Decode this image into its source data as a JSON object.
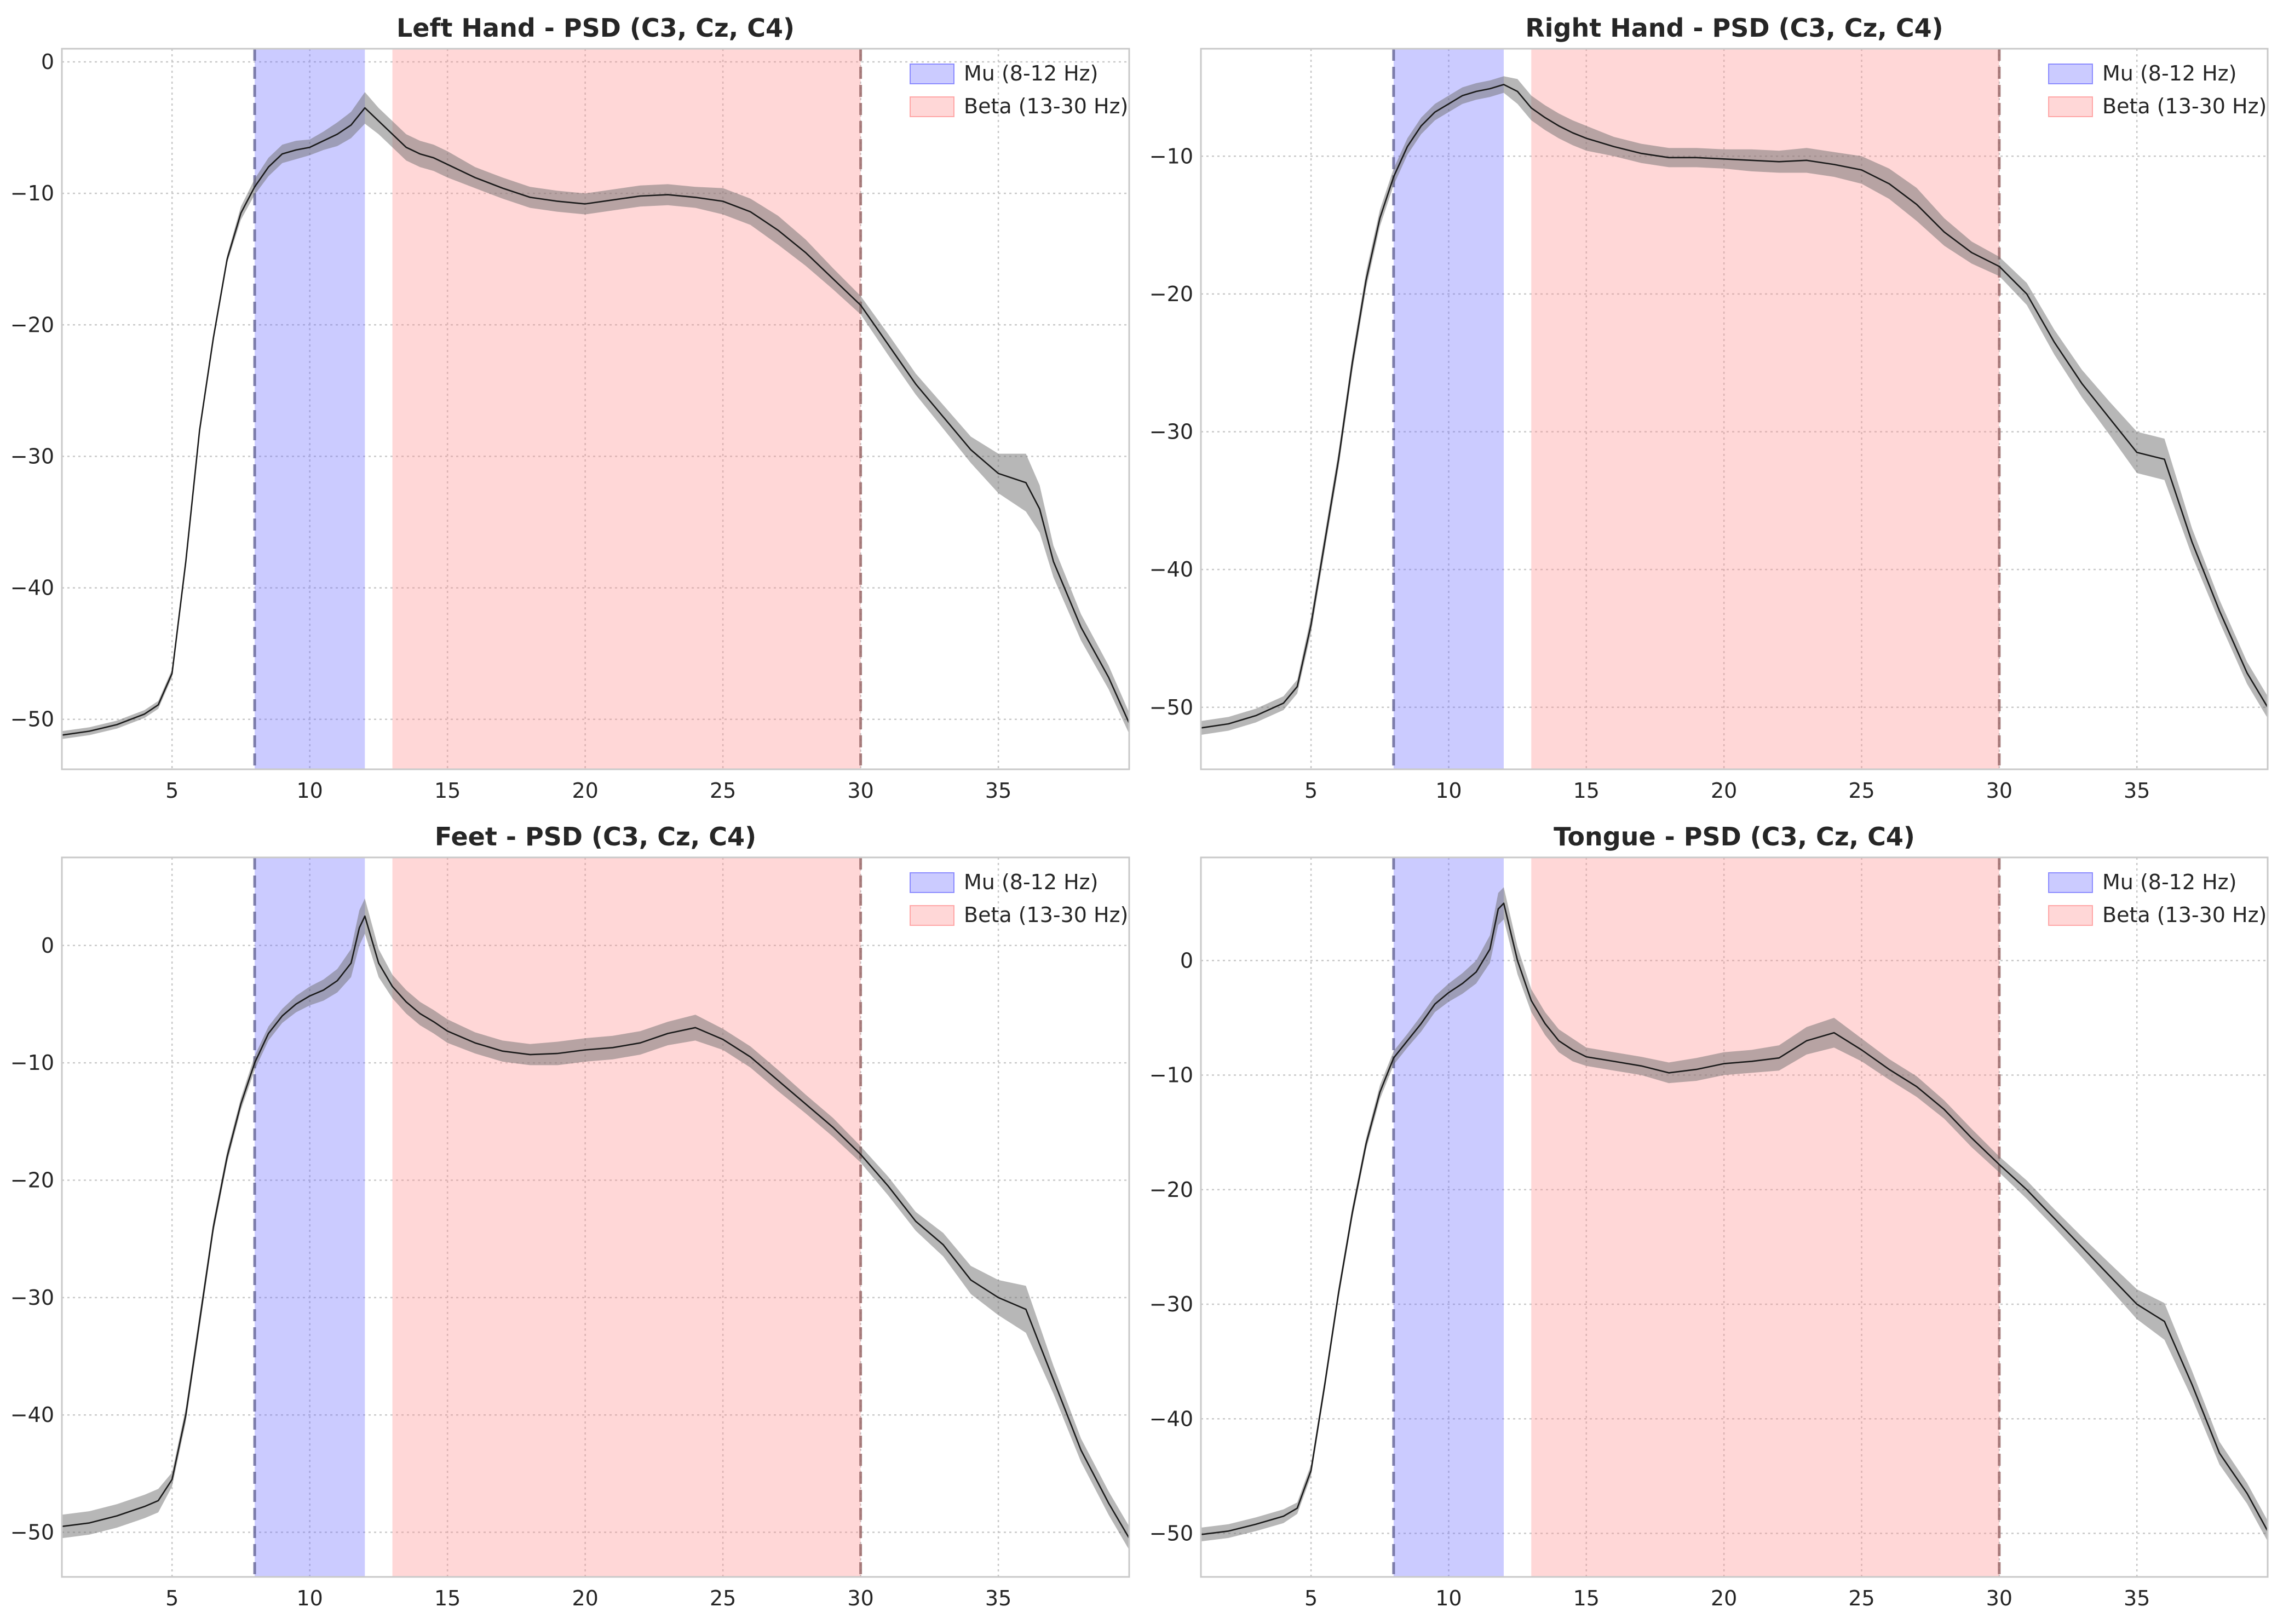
{
  "chart_data": [
    {
      "type": "line",
      "title": "Left Hand - PSD (C3, Cz, C4)",
      "xlim": [
        1,
        39.75
      ],
      "ylim": [
        -53.8,
        1.0
      ],
      "xticks": [
        5,
        10,
        15,
        20,
        25,
        30,
        35
      ],
      "yticks": [
        0,
        -10,
        -20,
        -30,
        -40,
        -50
      ],
      "grid": true,
      "legend_position": "top-right",
      "bands": [
        {
          "label": "Mu (8-12 Hz)",
          "range": [
            8,
            12
          ],
          "color": "#6666ff"
        },
        {
          "label": "Beta (13-30 Hz)",
          "range": [
            13,
            30
          ],
          "color": "#ff8a8a"
        }
      ],
      "vlines": [
        8,
        30
      ],
      "series": [
        {
          "x": [
            1,
            2,
            3,
            4,
            4.5,
            5,
            5.5,
            6,
            6.5,
            7,
            7.5,
            8,
            8.5,
            9,
            9.5,
            10,
            10.5,
            11,
            11.5,
            12,
            12.5,
            13,
            13.5,
            14,
            14.5,
            15,
            16,
            17,
            18,
            19,
            20,
            21,
            22,
            23,
            24,
            25,
            26,
            27,
            28,
            29,
            30,
            31,
            32,
            33,
            34,
            35,
            36,
            36.5,
            37,
            38,
            39,
            39.75
          ],
          "y": [
            -51.2,
            -50.9,
            -50.4,
            -49.6,
            -48.9,
            -46.5,
            -38,
            -28,
            -21,
            -15,
            -11.5,
            -9.5,
            -8,
            -7,
            -6.7,
            -6.5,
            -6,
            -5.5,
            -4.8,
            -3.5,
            -4.5,
            -5.5,
            -6.5,
            -7,
            -7.3,
            -7.8,
            -8.8,
            -9.6,
            -10.3,
            -10.6,
            -10.8,
            -10.5,
            -10.2,
            -10.1,
            -10.3,
            -10.6,
            -11.4,
            -12.8,
            -14.5,
            -16.5,
            -18.5,
            -21.5,
            -24.5,
            -27,
            -29.5,
            -31.3,
            -32,
            -34,
            -38,
            -43,
            -46.8,
            -50.3
          ],
          "band": [
            0.3,
            0.3,
            0.3,
            0.3,
            0.3,
            0.3,
            0.3,
            0.3,
            0.3,
            0.3,
            0.5,
            0.6,
            0.7,
            0.7,
            0.7,
            0.6,
            0.7,
            0.9,
            1.0,
            1.2,
            1.0,
            1.0,
            1.0,
            1.0,
            1.0,
            1.0,
            0.8,
            0.8,
            0.8,
            0.8,
            0.8,
            0.8,
            0.8,
            0.8,
            0.8,
            1.0,
            1.0,
            1.1,
            1.0,
            0.8,
            0.7,
            0.8,
            0.8,
            0.9,
            1.0,
            1.5,
            2.2,
            1.8,
            1.2,
            1.0,
            0.9,
            0.8
          ]
        }
      ]
    },
    {
      "type": "line",
      "title": "Right Hand - PSD (C3, Cz, C4)",
      "xlim": [
        1,
        39.75
      ],
      "ylim": [
        -54.5,
        -2.2
      ],
      "xticks": [
        5,
        10,
        15,
        20,
        25,
        30,
        35
      ],
      "yticks": [
        -10,
        -20,
        -30,
        -40,
        -50
      ],
      "grid": true,
      "legend_position": "top-right",
      "bands": [
        {
          "label": "Mu (8-12 Hz)",
          "range": [
            8,
            12
          ],
          "color": "#6666ff"
        },
        {
          "label": "Beta (13-30 Hz)",
          "range": [
            13,
            30
          ],
          "color": "#ff8a8a"
        }
      ],
      "vlines": [
        8,
        30
      ],
      "series": [
        {
          "x": [
            1,
            2,
            3,
            4,
            4.5,
            5,
            5.5,
            6,
            6.5,
            7,
            7.5,
            8,
            8.5,
            9,
            9.5,
            10,
            10.5,
            11,
            11.5,
            12,
            12.5,
            13,
            13.5,
            14,
            14.5,
            15,
            16,
            17,
            18,
            19,
            20,
            21,
            22,
            23,
            24,
            25,
            26,
            27,
            28,
            29,
            30,
            31,
            32,
            33,
            34,
            35,
            36,
            37,
            38,
            39,
            39.75
          ],
          "y": [
            -51.5,
            -51.2,
            -50.6,
            -49.7,
            -48.5,
            -44,
            -38,
            -32,
            -25,
            -19,
            -14.5,
            -11.5,
            -9.3,
            -7.8,
            -6.8,
            -6.2,
            -5.6,
            -5.3,
            -5.1,
            -4.8,
            -5.3,
            -6.5,
            -7.2,
            -7.8,
            -8.3,
            -8.7,
            -9.3,
            -9.8,
            -10.1,
            -10.1,
            -10.2,
            -10.3,
            -10.4,
            -10.3,
            -10.6,
            -11,
            -12,
            -13.5,
            -15.5,
            -17,
            -18,
            -20,
            -23.5,
            -26.5,
            -29,
            -31.5,
            -32,
            -38,
            -43,
            -47.5,
            -50
          ],
          "band": [
            0.5,
            0.5,
            0.5,
            0.5,
            0.5,
            0.6,
            0.6,
            0.6,
            0.6,
            0.6,
            0.6,
            0.6,
            0.6,
            0.6,
            0.6,
            0.6,
            0.6,
            0.6,
            0.6,
            0.6,
            0.9,
            0.9,
            0.9,
            0.9,
            0.9,
            0.9,
            0.7,
            0.7,
            0.7,
            0.7,
            0.7,
            0.8,
            0.8,
            0.9,
            0.9,
            1.0,
            1.1,
            1.2,
            1.0,
            0.8,
            0.7,
            0.8,
            0.9,
            1.0,
            1.2,
            1.5,
            1.5,
            1.0,
            0.8,
            0.8,
            0.8
          ]
        }
      ]
    },
    {
      "type": "line",
      "title": "Feet - PSD (C3, Cz, C4)",
      "xlim": [
        1,
        39.75
      ],
      "ylim": [
        -53.8,
        7.5
      ],
      "xticks": [
        5,
        10,
        15,
        20,
        25,
        30,
        35
      ],
      "yticks": [
        0,
        -10,
        -20,
        -30,
        -40,
        -50
      ],
      "grid": true,
      "legend_position": "top-right",
      "bands": [
        {
          "label": "Mu (8-12 Hz)",
          "range": [
            8,
            12
          ],
          "color": "#6666ff"
        },
        {
          "label": "Beta (13-30 Hz)",
          "range": [
            13,
            30
          ],
          "color": "#ff8a8a"
        }
      ],
      "vlines": [
        8,
        30
      ],
      "series": [
        {
          "x": [
            1,
            2,
            3,
            4,
            4.5,
            5,
            5.5,
            6,
            6.5,
            7,
            7.5,
            8,
            8.5,
            9,
            9.5,
            10,
            10.5,
            11,
            11.5,
            11.8,
            12,
            12.5,
            13,
            13.5,
            14,
            14.5,
            15,
            16,
            17,
            18,
            19,
            20,
            21,
            22,
            23,
            24,
            25,
            26,
            27,
            28,
            29,
            30,
            31,
            32,
            33,
            34,
            35,
            36,
            37,
            38,
            39,
            39.75
          ],
          "y": [
            -49.5,
            -49.2,
            -48.6,
            -47.8,
            -47.3,
            -45.5,
            -40,
            -32,
            -24,
            -18,
            -13.5,
            -10,
            -7.5,
            -6,
            -5,
            -4.3,
            -3.8,
            -3,
            -1.5,
            1.5,
            2.5,
            -1.5,
            -3.5,
            -4.8,
            -5.8,
            -6.5,
            -7.3,
            -8.3,
            -9,
            -9.3,
            -9.2,
            -8.9,
            -8.7,
            -8.3,
            -7.5,
            -7,
            -8,
            -9.5,
            -11.5,
            -13.5,
            -15.5,
            -17.8,
            -20.5,
            -23.5,
            -25.5,
            -28.5,
            -30,
            -31,
            -37,
            -43,
            -47.5,
            -50.5
          ],
          "band": [
            1.0,
            1.0,
            1.0,
            1.0,
            1.0,
            0.6,
            0.6,
            0.6,
            0.5,
            0.5,
            0.5,
            0.6,
            0.6,
            0.6,
            0.7,
            0.8,
            0.9,
            1.0,
            1.2,
            1.5,
            1.5,
            1.2,
            1.0,
            1.0,
            1.0,
            1.0,
            1.0,
            0.9,
            0.9,
            0.9,
            1.0,
            1.0,
            1.0,
            1.0,
            1.0,
            1.1,
            0.9,
            0.9,
            0.9,
            0.8,
            0.8,
            0.7,
            0.8,
            0.8,
            1.0,
            1.2,
            1.5,
            2.0,
            1.2,
            1.0,
            1.0,
            1.0
          ]
        }
      ]
    },
    {
      "type": "line",
      "title": "Tongue - PSD (C3, Cz, C4)",
      "xlim": [
        1,
        39.75
      ],
      "ylim": [
        -53.8,
        9.0
      ],
      "xticks": [
        5,
        10,
        15,
        20,
        25,
        30,
        35
      ],
      "yticks": [
        0,
        -10,
        -20,
        -30,
        -40,
        -50
      ],
      "grid": true,
      "legend_position": "top-right",
      "bands": [
        {
          "label": "Mu (8-12 Hz)",
          "range": [
            8,
            12
          ],
          "color": "#6666ff"
        },
        {
          "label": "Beta (13-30 Hz)",
          "range": [
            13,
            30
          ],
          "color": "#ff8a8a"
        }
      ],
      "vlines": [
        8,
        30
      ],
      "series": [
        {
          "x": [
            1,
            2,
            3,
            4,
            4.5,
            5,
            5.5,
            6,
            6.5,
            7,
            7.5,
            8,
            8.5,
            9,
            9.5,
            10,
            10.5,
            11,
            11.5,
            11.8,
            12,
            12.5,
            13,
            13.5,
            14,
            14.5,
            15,
            16,
            17,
            18,
            19,
            20,
            21,
            22,
            23,
            24,
            25,
            26,
            27,
            28,
            29,
            30,
            31,
            32,
            33,
            34,
            35,
            36,
            37,
            38,
            39,
            39.75
          ],
          "y": [
            -50.1,
            -49.8,
            -49.2,
            -48.5,
            -47.8,
            -44.5,
            -37,
            -29,
            -22,
            -16,
            -11.5,
            -8.5,
            -7,
            -5.5,
            -3.8,
            -2.8,
            -2,
            -1,
            1,
            4.5,
            5,
            0,
            -3.5,
            -5.5,
            -7,
            -7.8,
            -8.4,
            -8.8,
            -9.2,
            -9.8,
            -9.5,
            -9,
            -8.8,
            -8.5,
            -7,
            -6.3,
            -7.8,
            -9.5,
            -11,
            -13,
            -15.5,
            -17.8,
            -20,
            -22.5,
            -25,
            -27.5,
            -30,
            -31.5,
            -37,
            -43,
            -46.5,
            -49.8
          ],
          "band": [
            0.6,
            0.6,
            0.6,
            0.6,
            0.5,
            0.5,
            0.5,
            0.5,
            0.5,
            0.5,
            0.6,
            0.6,
            0.6,
            0.7,
            0.7,
            0.8,
            0.9,
            1.0,
            1.2,
            1.4,
            1.4,
            1.2,
            1.0,
            1.0,
            1.0,
            1.0,
            0.8,
            0.8,
            0.8,
            0.9,
            1.0,
            1.0,
            1.0,
            1.1,
            1.2,
            1.3,
            1.0,
            0.9,
            0.9,
            0.8,
            0.8,
            0.7,
            0.8,
            0.8,
            0.9,
            1.1,
            1.3,
            1.6,
            1.2,
            1.0,
            0.9,
            0.9
          ]
        }
      ]
    }
  ],
  "colors": {
    "mu_band": "#6666ff",
    "beta_band": "#ff8a8a",
    "mu_vline": "#6a6a9a",
    "beta_vline": "#9a6a6a",
    "psd_line": "#1a1a1a",
    "psd_spread": "#707070"
  }
}
